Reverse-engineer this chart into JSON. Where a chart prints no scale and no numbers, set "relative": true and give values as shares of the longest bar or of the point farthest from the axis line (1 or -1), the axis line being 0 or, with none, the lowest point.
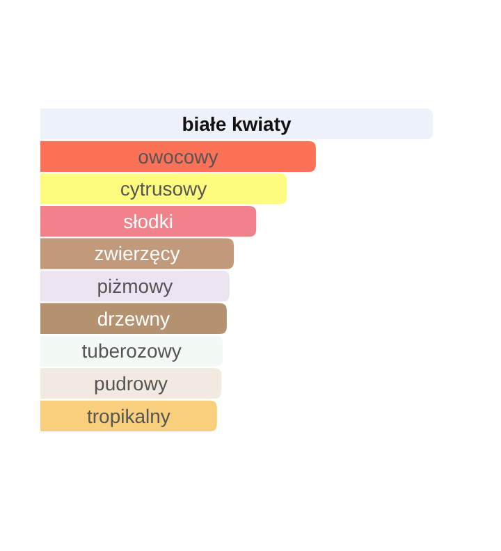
{
  "chart_data": {
    "type": "bar",
    "orientation": "horizontal",
    "relative": true,
    "categories": [
      "białe kwiaty",
      "owocowy",
      "cytrusowy",
      "słodki",
      "zwierzęcy",
      "piżmowy",
      "drzewny",
      "tuberozowy",
      "pudrowy",
      "tropikalny"
    ],
    "values": [
      1,
      0.702,
      0.628,
      0.55,
      0.493,
      0.482,
      0.475,
      0.465,
      0.461,
      0.45
    ],
    "colors": [
      "#edf1fa",
      "#fd7157",
      "#fdfc7e",
      "#f1818a",
      "#c09a7b",
      "#ede4f1",
      "#b4916f",
      "#f3f9f5",
      "#f2e9e0",
      "#f8d07d"
    ]
  }
}
